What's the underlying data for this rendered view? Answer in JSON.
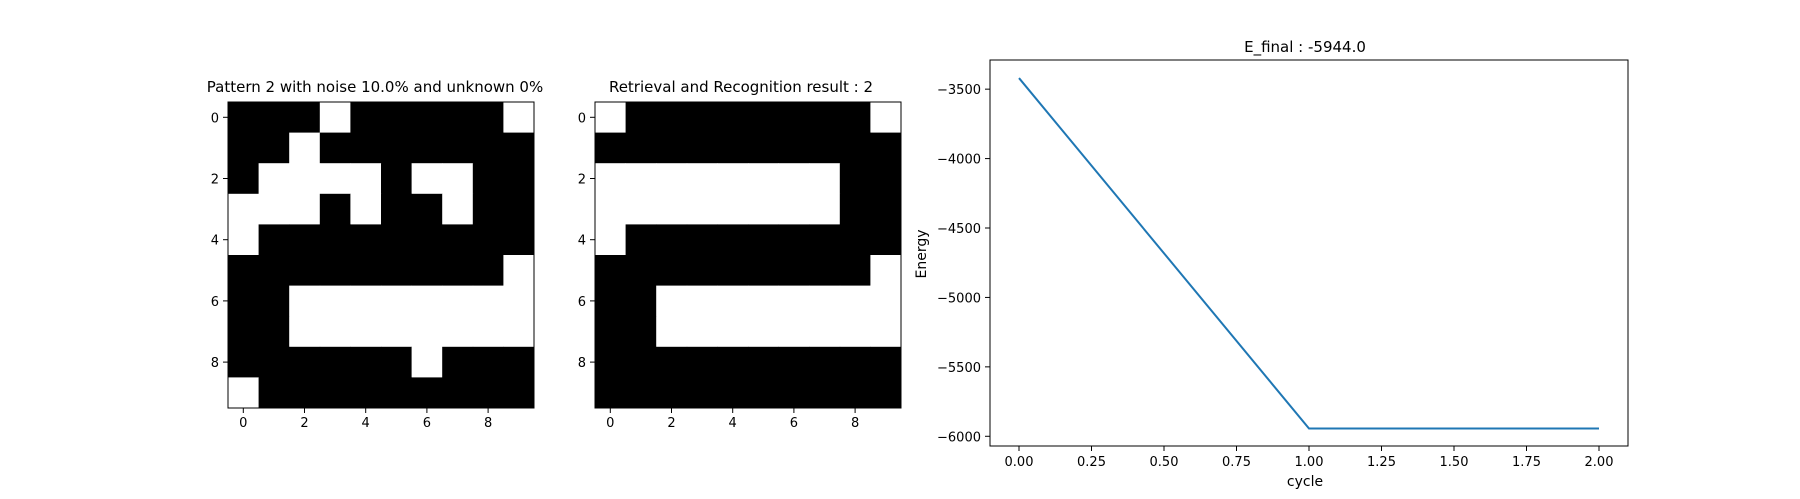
{
  "chart_data": [
    {
      "type": "heatmap",
      "title": "Pattern 2 with noise 10.0% and unknown 0%",
      "colormap": {
        "0": "#000000",
        "1": "#ffffff"
      },
      "x_ticks": [
        "0",
        "2",
        "4",
        "6",
        "8"
      ],
      "y_ticks": [
        "0",
        "2",
        "4",
        "6",
        "8"
      ],
      "grid": [
        [
          0,
          0,
          0,
          1,
          0,
          0,
          0,
          0,
          0,
          1
        ],
        [
          0,
          0,
          1,
          0,
          0,
          0,
          0,
          0,
          0,
          0
        ],
        [
          0,
          1,
          1,
          1,
          1,
          0,
          1,
          1,
          0,
          0
        ],
        [
          1,
          1,
          1,
          0,
          1,
          0,
          0,
          1,
          0,
          0
        ],
        [
          1,
          0,
          0,
          0,
          0,
          0,
          0,
          0,
          0,
          0
        ],
        [
          0,
          0,
          0,
          0,
          0,
          0,
          0,
          0,
          0,
          1
        ],
        [
          0,
          0,
          1,
          1,
          1,
          1,
          1,
          1,
          1,
          1
        ],
        [
          0,
          0,
          1,
          1,
          1,
          1,
          1,
          1,
          1,
          1
        ],
        [
          0,
          0,
          0,
          0,
          0,
          0,
          1,
          0,
          0,
          0
        ],
        [
          1,
          0,
          0,
          0,
          0,
          0,
          0,
          0,
          0,
          0
        ]
      ]
    },
    {
      "type": "heatmap",
      "title": "Retrieval and Recognition result : 2",
      "colormap": {
        "0": "#000000",
        "1": "#ffffff"
      },
      "x_ticks": [
        "0",
        "2",
        "4",
        "6",
        "8"
      ],
      "y_ticks": [
        "0",
        "2",
        "4",
        "6",
        "8"
      ],
      "grid": [
        [
          1,
          0,
          0,
          0,
          0,
          0,
          0,
          0,
          0,
          1
        ],
        [
          0,
          0,
          0,
          0,
          0,
          0,
          0,
          0,
          0,
          0
        ],
        [
          1,
          1,
          1,
          1,
          1,
          1,
          1,
          1,
          0,
          0
        ],
        [
          1,
          1,
          1,
          1,
          1,
          1,
          1,
          1,
          0,
          0
        ],
        [
          1,
          0,
          0,
          0,
          0,
          0,
          0,
          0,
          0,
          0
        ],
        [
          0,
          0,
          0,
          0,
          0,
          0,
          0,
          0,
          0,
          1
        ],
        [
          0,
          0,
          1,
          1,
          1,
          1,
          1,
          1,
          1,
          1
        ],
        [
          0,
          0,
          1,
          1,
          1,
          1,
          1,
          1,
          1,
          1
        ],
        [
          0,
          0,
          0,
          0,
          0,
          0,
          0,
          0,
          0,
          0
        ],
        [
          0,
          0,
          0,
          0,
          0,
          0,
          0,
          0,
          0,
          0
        ]
      ]
    },
    {
      "type": "line",
      "title": "E_final : -5944.0",
      "xlabel": "cycle",
      "ylabel": "Energy",
      "xlim": [
        -0.1,
        2.1
      ],
      "ylim": [
        -6070,
        -3290
      ],
      "x_ticks": [
        0,
        0.25,
        0.5,
        0.75,
        1.0,
        1.25,
        1.5,
        1.75,
        2.0
      ],
      "x_tick_labels": [
        "0.00",
        "0.25",
        "0.50",
        "0.75",
        "1.00",
        "1.25",
        "1.50",
        "1.75",
        "2.00"
      ],
      "y_ticks": [
        -3500,
        -4000,
        -4500,
        -5000,
        -5500,
        -6000
      ],
      "y_tick_labels": [
        "−3500",
        "−4000",
        "−4500",
        "−5000",
        "−5500",
        "−6000"
      ],
      "grid": false,
      "color": "#1f77b4",
      "series": [
        {
          "x": [
            0,
            1,
            2
          ],
          "y": [
            -3420,
            -5944,
            -5944
          ]
        }
      ]
    }
  ]
}
